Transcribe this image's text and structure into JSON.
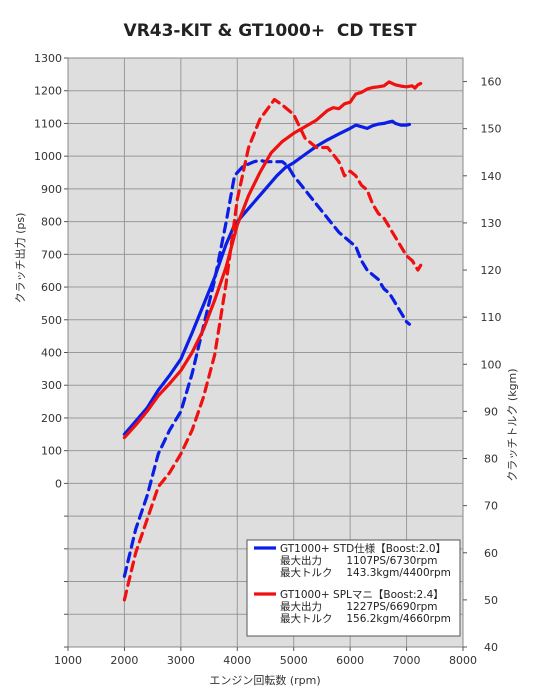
{
  "chart_data": {
    "type": "line",
    "title": "VR43-KIT & GT1000+  CD TEST",
    "xlabel": "エンジン回転数 (rpm)",
    "ylabel_left": "クラッチ出力 (ps)",
    "ylabel_right": "クラッチトルク (kgm)",
    "xlim": [
      1000,
      8000
    ],
    "xticks": [
      1000,
      2000,
      3000,
      4000,
      5000,
      6000,
      7000,
      8000
    ],
    "ylim_left": [
      -500,
      1300
    ],
    "yticks_left": [
      0,
      100,
      200,
      300,
      400,
      500,
      600,
      700,
      800,
      900,
      1000,
      1100,
      1200,
      1300
    ],
    "ylim_right": [
      40,
      165
    ],
    "yticks_right": [
      40,
      50,
      60,
      70,
      80,
      90,
      100,
      110,
      120,
      130,
      140,
      150,
      160
    ],
    "grid": true,
    "legend_position": "bottom-right",
    "colors": {
      "plot_bg": "#dedede",
      "grid": "#999999",
      "blue": "#0a1ee6",
      "red": "#f01010"
    },
    "series": [
      {
        "name": "GT1000+ STD仕様【Boost:2.0】",
        "color": "#0a1ee6",
        "axis": "left",
        "style": "solid",
        "x": [
          2000,
          2200,
          2400,
          2600,
          2800,
          3000,
          3200,
          3400,
          3600,
          3800,
          3950,
          4100,
          4300,
          4500,
          4700,
          4850,
          5000,
          5200,
          5400,
          5600,
          5800,
          6000,
          6100,
          6200,
          6300,
          6400,
          6500,
          6600,
          6700,
          6750,
          6800,
          6900,
          7000,
          7050
        ],
        "y": [
          150,
          190,
          230,
          285,
          330,
          380,
          460,
          545,
          630,
          730,
          790,
          820,
          860,
          900,
          940,
          965,
          980,
          1005,
          1030,
          1050,
          1068,
          1085,
          1095,
          1090,
          1085,
          1093,
          1098,
          1100,
          1105,
          1107,
          1100,
          1095,
          1095,
          1097
        ]
      },
      {
        "name": "GT1000+ STD仕様【Boost:2.0】",
        "color": "#0a1ee6",
        "axis": "right",
        "style": "dashed",
        "x": [
          2000,
          2200,
          2400,
          2600,
          2800,
          3000,
          3200,
          3400,
          3600,
          3800,
          3950,
          4100,
          4300,
          4400,
          4500,
          4600,
          4700,
          4800,
          4900,
          5000,
          5200,
          5400,
          5600,
          5800,
          6000,
          6100,
          6200,
          6300,
          6400,
          6500,
          6600,
          6700,
          6800,
          6900,
          7000,
          7050
        ],
        "y": [
          55,
          65,
          72,
          81,
          86,
          90,
          98,
          108,
          118,
          130,
          140,
          142,
          143,
          143.3,
          143,
          143,
          143,
          143,
          142,
          140,
          137,
          134,
          131,
          128,
          126,
          125,
          122,
          120,
          119,
          118,
          116,
          115,
          113,
          111,
          109,
          108.5
        ]
      },
      {
        "name": "GT1000+ SPLマニ【Boost:2.4】",
        "color": "#f01010",
        "axis": "left",
        "style": "solid",
        "x": [
          2000,
          2200,
          2400,
          2600,
          2800,
          3000,
          3200,
          3400,
          3600,
          3800,
          4000,
          4200,
          4400,
          4600,
          4800,
          5000,
          5200,
          5400,
          5500,
          5600,
          5700,
          5800,
          5900,
          6000,
          6100,
          6200,
          6300,
          6400,
          6500,
          6600,
          6690,
          6800,
          6900,
          7000,
          7100,
          7150,
          7200,
          7250
        ],
        "y": [
          140,
          178,
          220,
          268,
          305,
          345,
          400,
          470,
          560,
          660,
          790,
          880,
          950,
          1010,
          1045,
          1070,
          1090,
          1110,
          1125,
          1140,
          1148,
          1145,
          1160,
          1165,
          1190,
          1195,
          1205,
          1210,
          1212,
          1215,
          1227,
          1218,
          1214,
          1212,
          1215,
          1208,
          1218,
          1222
        ]
      },
      {
        "name": "GT1000+ SPLマニ【Boost:2.4】",
        "color": "#f01010",
        "axis": "right",
        "style": "dashed",
        "x": [
          2000,
          2200,
          2400,
          2600,
          2800,
          3000,
          3200,
          3400,
          3600,
          3800,
          4000,
          4200,
          4400,
          4660,
          4800,
          5000,
          5200,
          5400,
          5600,
          5800,
          5900,
          6000,
          6100,
          6200,
          6300,
          6400,
          6500,
          6600,
          6800,
          7000,
          7100,
          7200,
          7250
        ],
        "y": [
          50,
          60,
          67,
          74,
          77,
          81,
          86,
          93,
          102,
          117,
          135,
          146,
          152,
          156.2,
          155,
          153,
          148,
          146,
          146,
          143,
          140,
          141,
          140,
          138,
          137,
          134,
          132,
          131,
          127,
          123,
          122,
          120,
          121
        ]
      }
    ],
    "legend": [
      {
        "label": "GT1000+ STD仕様【Boost:2.0】",
        "color": "#0a1ee6",
        "lines": [
          "最大出力　　 1107PS/6730rpm",
          "最大トルク　 143.3kgm/4400rpm"
        ]
      },
      {
        "label": "GT1000+ SPLマニ【Boost:2.4】",
        "color": "#f01010",
        "lines": [
          "最大出力　　 1227PS/6690rpm",
          "最大トルク　 156.2kgm/4660rpm"
        ]
      }
    ]
  }
}
